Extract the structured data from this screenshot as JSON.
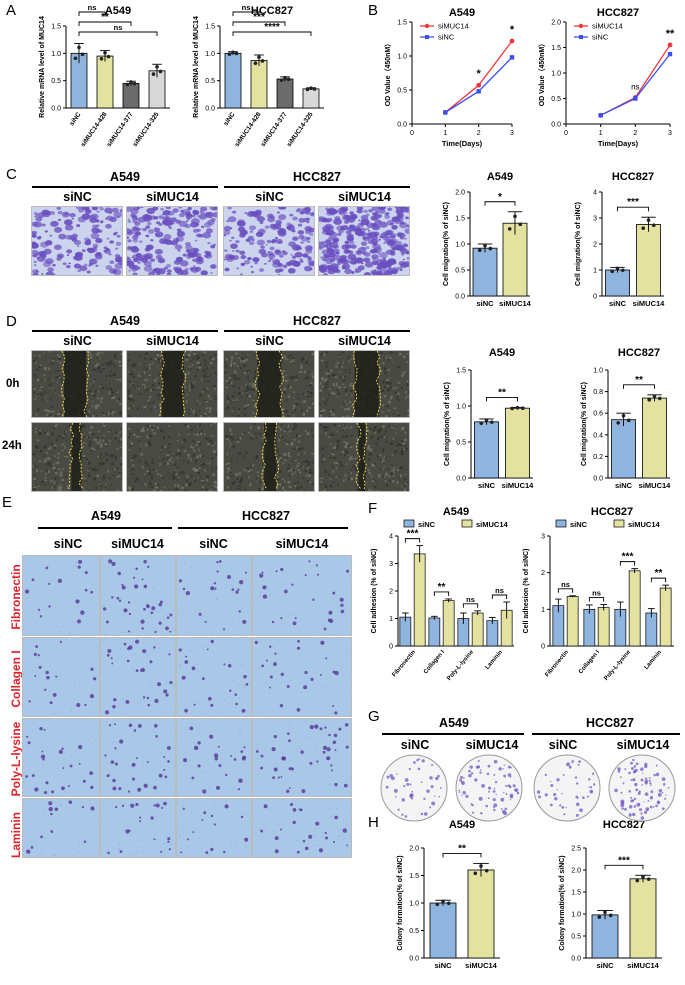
{
  "panel_letters": {
    "A": "A",
    "B": "B",
    "C": "C",
    "D": "D",
    "E": "E",
    "F": "F",
    "G": "G",
    "H": "H"
  },
  "colors": {
    "siNC": "#8fb4de",
    "siMUC14": "#e3e2a0",
    "si377": "#6b6b6b",
    "si325": "#d8d8d8",
    "line_siMUC14": "#f0363f",
    "line_siNC": "#3b4ff5",
    "red_label": "#e0232d",
    "crystal_violet": "#6a4fc0",
    "transwell_bg": "#cbd4ec",
    "adhesion_bg": "#a9c8e8",
    "wound_bg": "#4a4a44"
  },
  "groups": {
    "siNC": "siNC",
    "siMUC14": "siMUC14",
    "A549": "A549",
    "HCC827": "HCC827"
  },
  "time_labels": {
    "t0": "0h",
    "t24": "24h"
  },
  "coatings": [
    "Fibronectin",
    "Collagen I",
    "Poly-L-lysine",
    "Laminin"
  ],
  "chart_data": [
    {
      "id": "A-left",
      "type": "bar",
      "title": "A549",
      "ylabel": "Relative mRNA level of MUC14",
      "categories": [
        "siNC",
        "siMUC14-428",
        "siMUC14-377",
        "siMUC14-325"
      ],
      "values": [
        1.0,
        0.95,
        0.45,
        0.68
      ],
      "errors": [
        0.18,
        0.1,
        0.04,
        0.12
      ],
      "ylim": [
        0,
        1.5
      ],
      "yticks": [
        "0.0",
        "0.5",
        "1.0",
        "1.5"
      ],
      "colors": [
        "#8fb4de",
        "#e3e2a0",
        "#6b6b6b",
        "#d8d8d8"
      ],
      "significance": [
        {
          "from": 0,
          "to": 1,
          "label": "ns"
        },
        {
          "from": 0,
          "to": 2,
          "label": "**"
        },
        {
          "from": 0,
          "to": 3,
          "label": "ns"
        }
      ]
    },
    {
      "id": "A-right",
      "type": "bar",
      "title": "HCC827",
      "ylabel": "Relative mRNA level of MUC14",
      "categories": [
        "siNC",
        "siMUC14-428",
        "siMUC14-377",
        "siMUC14-325"
      ],
      "values": [
        1.0,
        0.87,
        0.53,
        0.35
      ],
      "errors": [
        0.03,
        0.1,
        0.04,
        0.02
      ],
      "ylim": [
        0,
        1.5
      ],
      "yticks": [
        "0.0",
        "0.5",
        "1.0",
        "1.5"
      ],
      "colors": [
        "#8fb4de",
        "#e3e2a0",
        "#6b6b6b",
        "#d8d8d8"
      ],
      "significance": [
        {
          "from": 0,
          "to": 1,
          "label": "ns"
        },
        {
          "from": 0,
          "to": 2,
          "label": "***"
        },
        {
          "from": 0,
          "to": 3,
          "label": "****"
        }
      ]
    },
    {
      "id": "B-left",
      "type": "line",
      "title": "A549",
      "xlabel": "Time(Days)",
      "ylabel": "OD Value（450nM）",
      "x": [
        0,
        1,
        2,
        3
      ],
      "xlim": [
        0,
        3
      ],
      "ylim": [
        0,
        1.5
      ],
      "yticks": [
        "0.0",
        "0.5",
        "1.0",
        "1.5"
      ],
      "series": [
        {
          "name": "siMUC14",
          "values": [
            null,
            0.17,
            0.57,
            1.22
          ]
        },
        {
          "name": "siNC",
          "values": [
            null,
            0.17,
            0.48,
            0.98
          ]
        }
      ],
      "significance": [
        {
          "x": 2,
          "label": "*"
        },
        {
          "x": 3,
          "label": "*"
        }
      ],
      "legend": "top-left"
    },
    {
      "id": "B-right",
      "type": "line",
      "title": "HCC827",
      "xlabel": "Time(Days)",
      "ylabel": "OD Value（450nM）",
      "x": [
        0,
        1,
        2,
        3
      ],
      "xlim": [
        0,
        3
      ],
      "ylim": [
        0,
        2.0
      ],
      "yticks": [
        "0.0",
        "0.5",
        "1.0",
        "1.5",
        "2.0"
      ],
      "series": [
        {
          "name": "siMUC14",
          "values": [
            null,
            0.17,
            0.52,
            1.55
          ]
        },
        {
          "name": "siNC",
          "values": [
            null,
            0.17,
            0.5,
            1.37
          ]
        }
      ],
      "significance": [
        {
          "x": 2,
          "label": "ns"
        },
        {
          "x": 3,
          "label": "**"
        }
      ],
      "legend": "top-left"
    },
    {
      "id": "C-left",
      "type": "bar",
      "title": "A549",
      "ylabel": "Cell migration(% of siNC)",
      "categories": [
        "siNC",
        "siMUC14"
      ],
      "values": [
        0.92,
        1.4
      ],
      "errors": [
        0.08,
        0.22
      ],
      "ylim": [
        0,
        2.0
      ],
      "yticks": [
        "0.0",
        "0.5",
        "1.0",
        "1.5",
        "2.0"
      ],
      "colors": [
        "#8fb4de",
        "#e3e2a0"
      ],
      "significance": [
        {
          "from": 0,
          "to": 1,
          "label": "*"
        }
      ]
    },
    {
      "id": "C-right",
      "type": "bar",
      "title": "HCC827",
      "ylabel": "Cell migration(% of siNC)",
      "categories": [
        "siNC",
        "siMUC14"
      ],
      "values": [
        1.0,
        2.75
      ],
      "errors": [
        0.1,
        0.28
      ],
      "ylim": [
        0,
        4
      ],
      "yticks": [
        "0",
        "1",
        "2",
        "3",
        "4"
      ],
      "colors": [
        "#8fb4de",
        "#e3e2a0"
      ],
      "significance": [
        {
          "from": 0,
          "to": 1,
          "label": "***"
        }
      ]
    },
    {
      "id": "D-left",
      "type": "bar",
      "title": "A549",
      "ylabel": "Cell migration(% of siNC)",
      "categories": [
        "siNC",
        "siMUC14"
      ],
      "values": [
        0.78,
        0.97
      ],
      "errors": [
        0.04,
        0.01
      ],
      "ylim": [
        0,
        1.5
      ],
      "yticks": [
        "0.0",
        "0.5",
        "1.0",
        "1.5"
      ],
      "colors": [
        "#8fb4de",
        "#e3e2a0"
      ],
      "significance": [
        {
          "from": 0,
          "to": 1,
          "label": "**"
        }
      ]
    },
    {
      "id": "D-right",
      "type": "bar",
      "title": "HCC827",
      "ylabel": "Cell migration(% of siNC)",
      "categories": [
        "siNC",
        "siMUC14"
      ],
      "values": [
        0.54,
        0.74
      ],
      "errors": [
        0.06,
        0.03
      ],
      "ylim": [
        0,
        1.0
      ],
      "yticks": [
        "0.0",
        "0.2",
        "0.4",
        "0.6",
        "0.8",
        "1.0"
      ],
      "colors": [
        "#8fb4de",
        "#e3e2a0"
      ],
      "significance": [
        {
          "from": 0,
          "to": 1,
          "label": "**"
        }
      ]
    },
    {
      "id": "F-left",
      "type": "bar",
      "title": "A549",
      "ylabel": "Cell adhesion (% of siNC)",
      "categories": [
        "Fibronectin",
        "Collagen I",
        "Poly-L-lysine",
        "Laminin"
      ],
      "series": [
        {
          "name": "siNC",
          "values": [
            1.05,
            1.02,
            1.0,
            0.92
          ],
          "errors": [
            0.15,
            0.06,
            0.2,
            0.12
          ]
        },
        {
          "name": "siMUC14",
          "values": [
            3.35,
            1.65,
            1.2,
            1.3
          ],
          "errors": [
            0.3,
            0.06,
            0.08,
            0.3
          ]
        }
      ],
      "ylim": [
        0,
        4
      ],
      "yticks": [
        "0",
        "1",
        "2",
        "3",
        "4"
      ],
      "colors": [
        "#8fb4de",
        "#e3e2a0"
      ],
      "significance": [
        {
          "cat": 0,
          "label": "***"
        },
        {
          "cat": 1,
          "label": "**"
        },
        {
          "cat": 2,
          "label": "ns"
        },
        {
          "cat": 3,
          "label": "ns"
        }
      ],
      "legend": "top"
    },
    {
      "id": "F-right",
      "type": "bar",
      "title": "HCC827",
      "ylabel": "Cell adhesion (% of siNC)",
      "categories": [
        "Fibronectin",
        "Collagen I",
        "Poly-L-lysine",
        "Laminin"
      ],
      "series": [
        {
          "name": "siNC",
          "values": [
            1.1,
            1.0,
            1.0,
            0.9
          ],
          "errors": [
            0.18,
            0.12,
            0.2,
            0.12
          ]
        },
        {
          "name": "siMUC14",
          "values": [
            1.35,
            1.05,
            2.05,
            1.58
          ],
          "errors": [
            0.02,
            0.08,
            0.06,
            0.08
          ]
        }
      ],
      "ylim": [
        0,
        3
      ],
      "yticks": [
        "0",
        "1",
        "2",
        "3"
      ],
      "colors": [
        "#8fb4de",
        "#e3e2a0"
      ],
      "significance": [
        {
          "cat": 0,
          "label": "ns"
        },
        {
          "cat": 1,
          "label": "ns"
        },
        {
          "cat": 2,
          "label": "***"
        },
        {
          "cat": 3,
          "label": "**"
        }
      ],
      "legend": "top"
    },
    {
      "id": "H-left",
      "type": "bar",
      "title": "A549",
      "ylabel": "Colony formation(% of siNC)",
      "categories": [
        "siNC",
        "siMUC14"
      ],
      "values": [
        1.0,
        1.6
      ],
      "errors": [
        0.05,
        0.12
      ],
      "ylim": [
        0,
        2.0
      ],
      "yticks": [
        "0.0",
        "0.5",
        "1.0",
        "1.5",
        "2.0"
      ],
      "colors": [
        "#8fb4de",
        "#e3e2a0"
      ],
      "significance": [
        {
          "from": 0,
          "to": 1,
          "label": "**"
        }
      ]
    },
    {
      "id": "H-right",
      "type": "bar",
      "title": "HCC827",
      "ylabel": "Colony formation(% of siNC)",
      "categories": [
        "siNC",
        "siMUC14"
      ],
      "values": [
        0.98,
        1.8
      ],
      "errors": [
        0.1,
        0.08
      ],
      "ylim": [
        0,
        2.5
      ],
      "yticks": [
        "0.0",
        "0.5",
        "1.0",
        "1.5",
        "2.0",
        "2.5"
      ],
      "colors": [
        "#8fb4de",
        "#e3e2a0"
      ],
      "significance": [
        {
          "from": 0,
          "to": 1,
          "label": "***"
        }
      ]
    }
  ]
}
